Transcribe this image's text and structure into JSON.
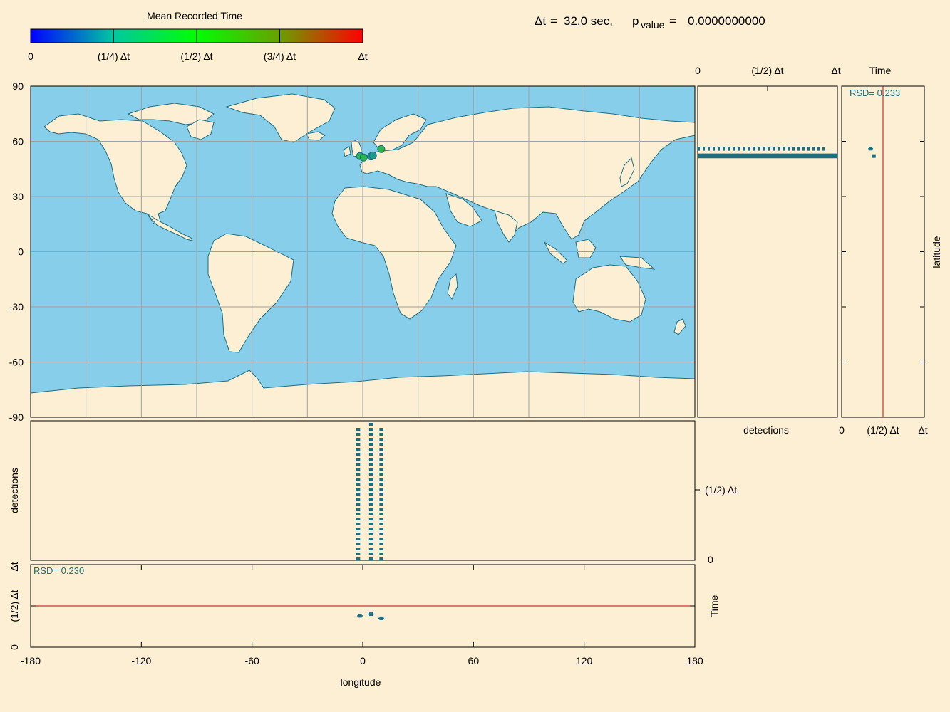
{
  "header": {
    "dt_symbol": "Δt",
    "dt_eq": "=",
    "dt_value": "32.0 sec,",
    "p_label": "p",
    "p_sub": "value",
    "p_eq": "=",
    "p_value": "0.0000000000"
  },
  "colorbar": {
    "title": "Mean Recorded Time",
    "ticks": [
      "0",
      "(1/4) Δt",
      "(1/2) Δt",
      "(3/4) Δt",
      "Δt"
    ],
    "gradient_stops": [
      "#0000ff",
      "#00c8a0",
      "#00ff00",
      "#6aa000",
      "#ff0000"
    ]
  },
  "colors": {
    "background": "#fdefd3",
    "ocean": "#87ceeb",
    "land": "#fdefd3",
    "coast": "#1c6f82",
    "grid": "#a0a0a0",
    "marker": "#1c6f82",
    "reference_line": "#cc0000"
  },
  "chart_data": [
    {
      "type": "scatter",
      "name": "map",
      "xlabel": "longitude",
      "ylabel": "latitude",
      "xlim": [
        -180,
        180
      ],
      "ylim": [
        -90,
        90
      ],
      "xticks": [
        "-180",
        "-120",
        "-60",
        "0",
        "60",
        "120",
        "180"
      ],
      "yticks": [
        "90",
        "60",
        "30",
        "0",
        "-30",
        "-60",
        "-90"
      ],
      "grid": true,
      "points": [
        {
          "lon": -1.5,
          "lat": 52.0,
          "color": "#2bb84a"
        },
        {
          "lon": 0.5,
          "lat": 51.2,
          "color": "#2bb84a"
        },
        {
          "lon": 4.5,
          "lat": 51.8,
          "color": "#1e9a8a"
        },
        {
          "lon": 5.5,
          "lat": 52.3,
          "color": "#1e9a8a"
        },
        {
          "lon": 10.0,
          "lat": 55.8,
          "color": "#2bb84a"
        }
      ]
    },
    {
      "type": "scatter",
      "name": "detections-vs-latitude",
      "xticks": [
        "0",
        "(1/2) Δt",
        "Δt"
      ],
      "xlabel": "detections",
      "rows": [
        {
          "lat": 56.5,
          "x_from": 0.0,
          "x_to": 0.92,
          "dashed": true
        },
        {
          "lat": 55.5,
          "x_from": 0.0,
          "x_to": 0.92,
          "dashed": true
        },
        {
          "lat": 52.8,
          "x_from": 0.0,
          "x_to": 1.0,
          "dashed": false
        },
        {
          "lat": 52.0,
          "x_from": 0.0,
          "x_to": 1.0,
          "dashed": false
        },
        {
          "lat": 51.4,
          "x_from": 0.0,
          "x_to": 1.0,
          "dashed": false
        }
      ]
    },
    {
      "type": "scatter",
      "name": "time-vs-latitude",
      "title": "Time",
      "ylabel": "latitude",
      "rsd": "RSD= 0.233",
      "xticks": [
        "0",
        "(1/2) Δt",
        "Δt"
      ],
      "reference_x": 0.5,
      "points": [
        {
          "lat": 56.0,
          "time": 0.35,
          "err": 0.03
        },
        {
          "lat": 52.0,
          "time": 0.39,
          "err": 0.02
        }
      ]
    },
    {
      "type": "scatter",
      "name": "detections-vs-longitude",
      "ylabel": "detections",
      "yticks": [
        "Δt",
        "(1/2) Δt",
        "0"
      ],
      "columns": [
        {
          "lon": -3.0,
          "from": 0.0,
          "to": 0.96
        },
        {
          "lon": -2.0,
          "from": 0.0,
          "to": 0.96
        },
        {
          "lon": 4.0,
          "from": 0.0,
          "to": 1.0
        },
        {
          "lon": 4.6,
          "from": 0.0,
          "to": 1.0
        },
        {
          "lon": 5.2,
          "from": 0.0,
          "to": 1.0
        },
        {
          "lon": 9.6,
          "from": 0.0,
          "to": 0.96
        },
        {
          "lon": 10.4,
          "from": 0.0,
          "to": 0.96
        }
      ]
    },
    {
      "type": "scatter",
      "name": "time-vs-longitude",
      "ylabel": "Time",
      "rsd": "RSD= 0.230",
      "yticks": [
        "(1/2) Δt",
        "0"
      ],
      "reference_y": 0.5,
      "points": [
        {
          "lon": -1.5,
          "time": 0.38,
          "err": 0.03
        },
        {
          "lon": 4.5,
          "time": 0.4,
          "err": 0.02
        },
        {
          "lon": 10.0,
          "time": 0.35,
          "err": 0.03
        }
      ]
    }
  ]
}
